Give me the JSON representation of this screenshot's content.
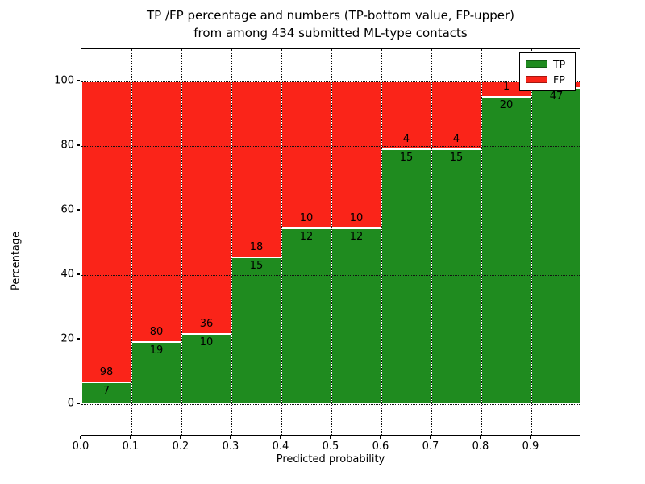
{
  "chart_data": {
    "type": "bar",
    "stacked": true,
    "normalized": "percent",
    "title_line1": "TP /FP percentage and numbers (TP-bottom value, FP-upper)",
    "title_line2": "from among 434 submitted ML-type contacts",
    "xlabel": "Predicted probability",
    "ylabel": "Percentage",
    "total_contacts": 434,
    "categories": [
      "0.0-0.1",
      "0.1-0.2",
      "0.2-0.3",
      "0.3-0.4",
      "0.4-0.5",
      "0.5-0.6",
      "0.6-0.7",
      "0.7-0.8",
      "0.8-0.9",
      "0.9-1.0"
    ],
    "series": [
      {
        "name": "TP",
        "color": "#1f8b1f",
        "values": [
          7,
          19,
          10,
          15,
          12,
          12,
          15,
          15,
          20,
          47
        ]
      },
      {
        "name": "FP",
        "color": "#fa2419",
        "values": [
          98,
          80,
          36,
          18,
          10,
          10,
          4,
          4,
          1,
          1
        ]
      }
    ],
    "xticks": [
      "0.0",
      "0.1",
      "0.2",
      "0.3",
      "0.4",
      "0.5",
      "0.6",
      "0.7",
      "0.8",
      "0.9"
    ],
    "yticks": [
      "0",
      "20",
      "40",
      "60",
      "80",
      "100"
    ],
    "ytick_values": [
      0,
      20,
      40,
      60,
      80,
      100
    ],
    "xlim": [
      0.0,
      1.0
    ],
    "ylim": [
      -10,
      110
    ],
    "grid": "dotted, on top of bars",
    "legend": {
      "position": "upper right",
      "entries": [
        {
          "label": "TP",
          "color": "#1f8b1f"
        },
        {
          "label": "FP",
          "color": "#fa2419"
        }
      ]
    }
  }
}
